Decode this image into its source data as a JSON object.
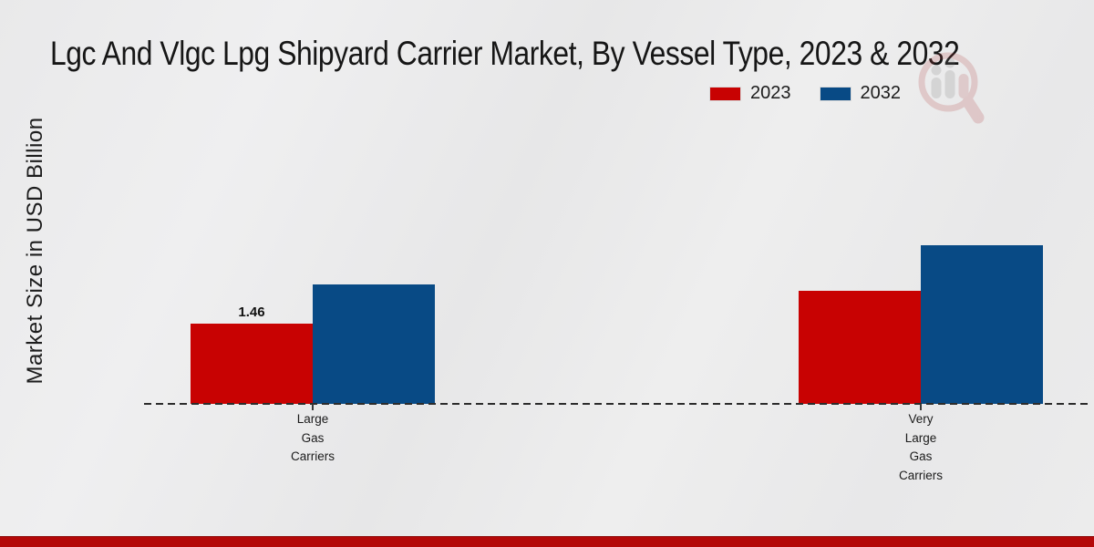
{
  "chart_data": {
    "type": "bar",
    "title": "Lgc And Vlgc Lpg Shipyard Carrier Market, By Vessel Type, 2023 & 2032",
    "ylabel": "Market Size in USD Billion",
    "xlabel": "",
    "categories": [
      "Large Gas Carriers",
      "Very Large Gas Carriers"
    ],
    "series": [
      {
        "name": "2023",
        "color": "#c80202",
        "values": [
          1.46,
          2.06
        ]
      },
      {
        "name": "2032",
        "color": "#084a85",
        "values": [
          2.17,
          2.89
        ]
      }
    ],
    "value_labels": [
      {
        "series_index": 0,
        "category_index": 0,
        "text": "1.46"
      }
    ],
    "ylim": [
      0,
      3.2
    ],
    "grid": false,
    "legend_position": "top-right",
    "baseline_style": "dashed"
  },
  "colors": {
    "background": "#eaeaea",
    "bottom_strip": "#b40808",
    "text": "#1c1c1c",
    "baseline": "#2c2c2c"
  }
}
